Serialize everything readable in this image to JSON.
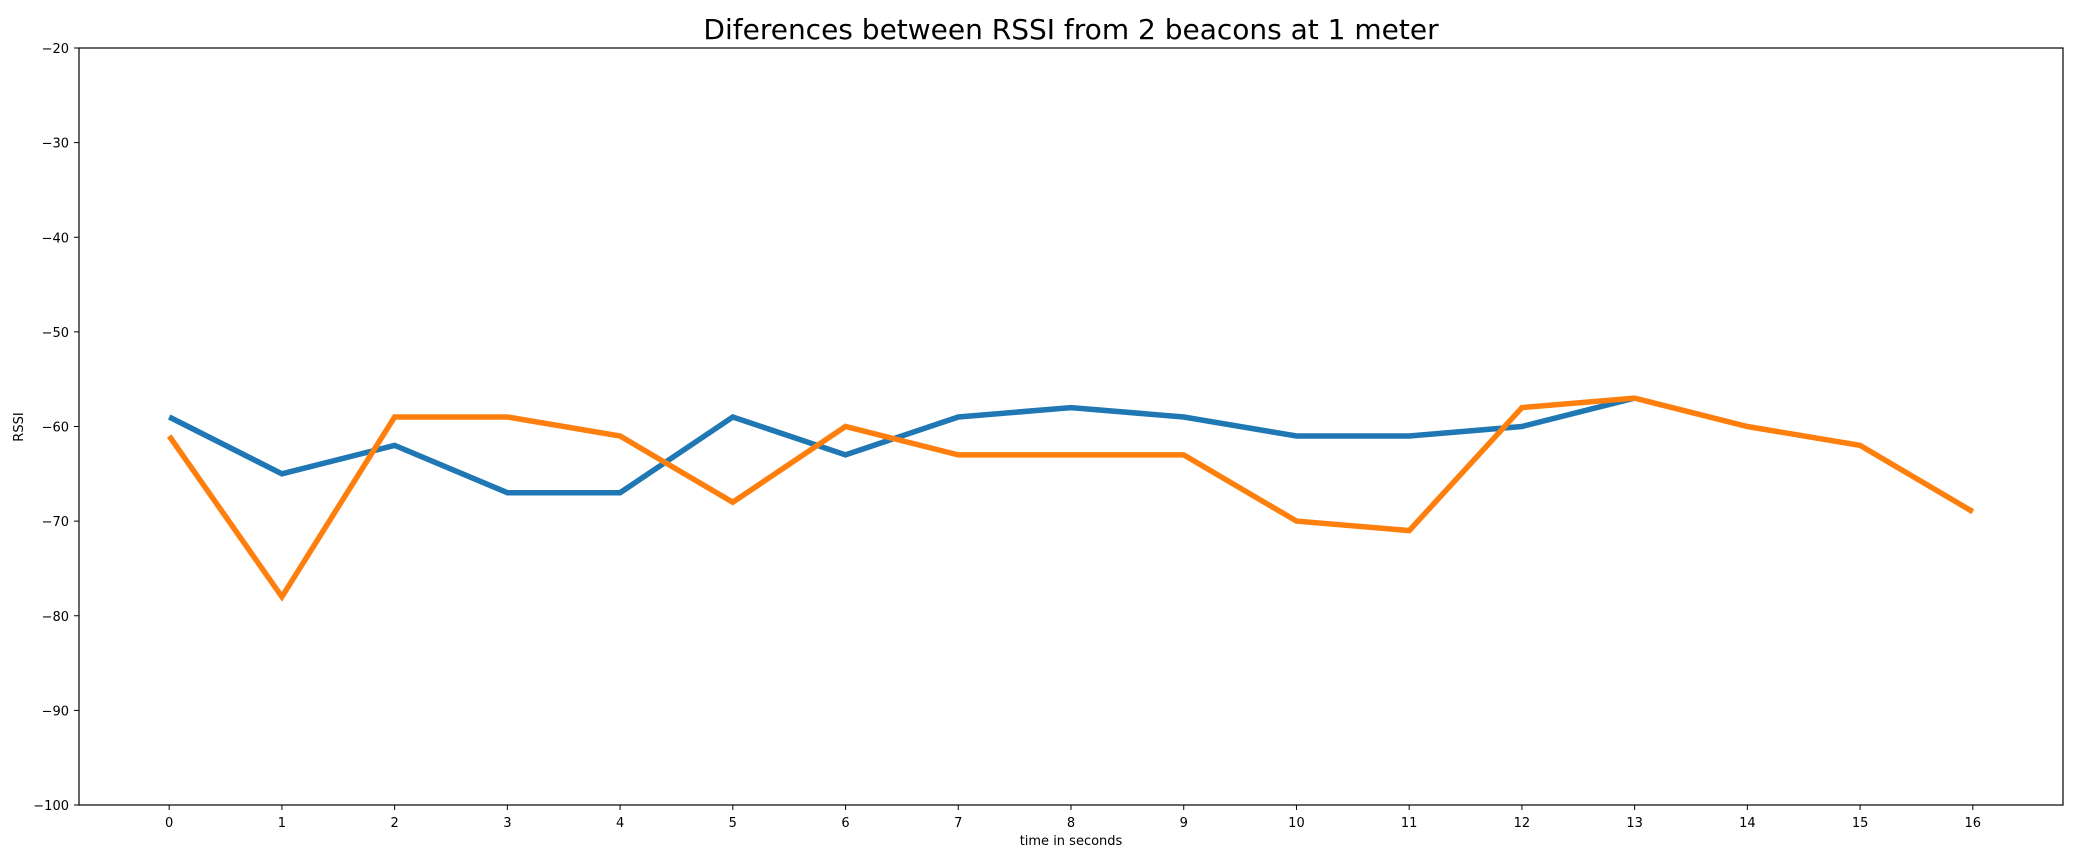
{
  "chart_data": {
    "type": "line",
    "title": "Diferences between RSSI from 2 beacons at 1 meter",
    "xlabel": "time in seconds",
    "ylabel": "RSSI",
    "xlim": [
      -0.8,
      16.8
    ],
    "ylim": [
      -100,
      -20
    ],
    "x_ticks": [
      0,
      1,
      2,
      3,
      4,
      5,
      6,
      7,
      8,
      9,
      10,
      11,
      12,
      13,
      14,
      15,
      16
    ],
    "y_ticks": [
      -100,
      -90,
      -80,
      -70,
      -60,
      -50,
      -40,
      -30,
      -20
    ],
    "x_tick_labels": [
      "0",
      "1",
      "2",
      "3",
      "4",
      "5",
      "6",
      "7",
      "8",
      "9",
      "10",
      "11",
      "12",
      "13",
      "14",
      "15",
      "16"
    ],
    "y_tick_labels": [
      "−100",
      "−90",
      "−80",
      "−70",
      "−60",
      "−50",
      "−40",
      "−30",
      "−20"
    ],
    "grid": false,
    "legend": false,
    "series": [
      {
        "color": "#1f77b4",
        "x": [
          0,
          1,
          2,
          3,
          4,
          5,
          6,
          7,
          8,
          9,
          10,
          11,
          12,
          13
        ],
        "values": [
          -59,
          -65,
          -62,
          -67,
          -67,
          -59,
          -63,
          -59,
          -58,
          -59,
          -61,
          -61,
          -60,
          -57
        ]
      },
      {
        "color": "#ff7f0e",
        "x": [
          0,
          1,
          2,
          3,
          4,
          5,
          6,
          7,
          8,
          9,
          10,
          11,
          12,
          13,
          14,
          15,
          16
        ],
        "values": [
          -61,
          -78,
          -59,
          -59,
          -61,
          -68,
          -60,
          -63,
          -63,
          -63,
          -70,
          -71,
          -58,
          -57,
          -60,
          -62,
          -69
        ]
      }
    ]
  }
}
